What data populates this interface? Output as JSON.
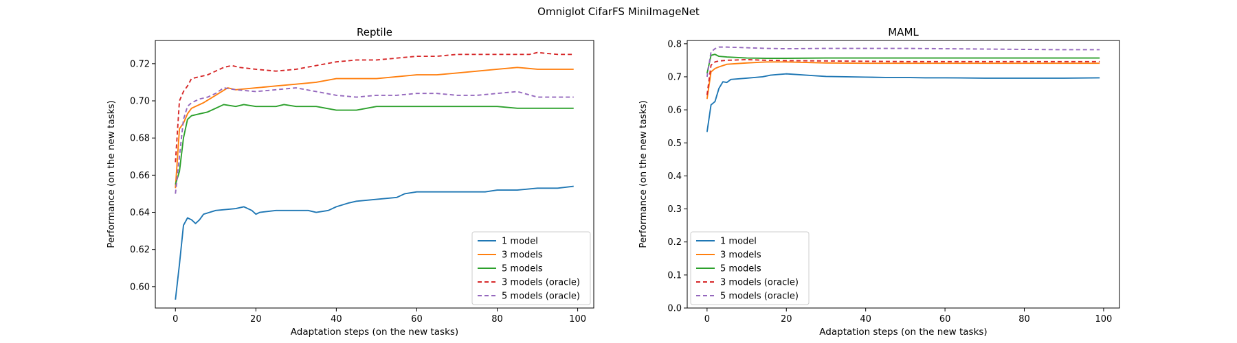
{
  "figure": {
    "suptitle": "Omniglot CifarFS MiniImageNet"
  },
  "legend_order": [
    "1 model",
    "3 models",
    "5 models",
    "3 models (oracle)",
    "5 models (oracle)"
  ],
  "series_style": {
    "1 model": {
      "color": "#1f77b4",
      "dash": ""
    },
    "3 models": {
      "color": "#ff7f0e",
      "dash": ""
    },
    "5 models": {
      "color": "#2ca02c",
      "dash": ""
    },
    "3 models (oracle)": {
      "color": "#d62728",
      "dash": "6 4"
    },
    "5 models (oracle)": {
      "color": "#9467bd",
      "dash": "6 4"
    }
  },
  "chart_data": [
    {
      "type": "line",
      "title": "Reptile",
      "xlabel": "Adaptation steps (on the new tasks)",
      "ylabel": "Performance (on the new tasks)",
      "xlim": [
        -5,
        104
      ],
      "ylim": [
        0.5885,
        0.7325
      ],
      "xticks": [
        0,
        20,
        40,
        60,
        80,
        100
      ],
      "yticks": [
        0.6,
        0.62,
        0.64,
        0.66,
        0.68,
        0.7,
        0.72
      ],
      "ytick_labels": [
        "0.60",
        "0.62",
        "0.64",
        "0.66",
        "0.68",
        "0.70",
        "0.72"
      ],
      "grid": false,
      "legend": "lower-right",
      "series": [
        {
          "name": "1 model",
          "points": [
            [
              0,
              0.593
            ],
            [
              1,
              0.612
            ],
            [
              2,
              0.633
            ],
            [
              3,
              0.637
            ],
            [
              4,
              0.636
            ],
            [
              5,
              0.634
            ],
            [
              6,
              0.636
            ],
            [
              7,
              0.639
            ],
            [
              10,
              0.641
            ],
            [
              15,
              0.642
            ],
            [
              17,
              0.643
            ],
            [
              19,
              0.641
            ],
            [
              20,
              0.639
            ],
            [
              21,
              0.64
            ],
            [
              25,
              0.641
            ],
            [
              30,
              0.641
            ],
            [
              33,
              0.641
            ],
            [
              35,
              0.64
            ],
            [
              38,
              0.641
            ],
            [
              40,
              0.643
            ],
            [
              43,
              0.645
            ],
            [
              45,
              0.646
            ],
            [
              50,
              0.647
            ],
            [
              55,
              0.648
            ],
            [
              57,
              0.65
            ],
            [
              60,
              0.651
            ],
            [
              65,
              0.651
            ],
            [
              70,
              0.651
            ],
            [
              75,
              0.651
            ],
            [
              77,
              0.651
            ],
            [
              80,
              0.652
            ],
            [
              85,
              0.652
            ],
            [
              90,
              0.653
            ],
            [
              95,
              0.653
            ],
            [
              99,
              0.654
            ]
          ]
        },
        {
          "name": "3 models",
          "points": [
            [
              0,
              0.653
            ],
            [
              1,
              0.685
            ],
            [
              2,
              0.688
            ],
            [
              3,
              0.693
            ],
            [
              4,
              0.696
            ],
            [
              5,
              0.697
            ],
            [
              7,
              0.699
            ],
            [
              10,
              0.703
            ],
            [
              13,
              0.707
            ],
            [
              15,
              0.706
            ],
            [
              20,
              0.707
            ],
            [
              25,
              0.708
            ],
            [
              30,
              0.709
            ],
            [
              35,
              0.71
            ],
            [
              40,
              0.712
            ],
            [
              45,
              0.712
            ],
            [
              50,
              0.712
            ],
            [
              55,
              0.713
            ],
            [
              60,
              0.714
            ],
            [
              65,
              0.714
            ],
            [
              70,
              0.715
            ],
            [
              75,
              0.716
            ],
            [
              80,
              0.717
            ],
            [
              85,
              0.718
            ],
            [
              90,
              0.717
            ],
            [
              95,
              0.717
            ],
            [
              99,
              0.717
            ]
          ]
        },
        {
          "name": "5 models",
          "points": [
            [
              0,
              0.655
            ],
            [
              1,
              0.662
            ],
            [
              2,
              0.68
            ],
            [
              3,
              0.69
            ],
            [
              4,
              0.692
            ],
            [
              6,
              0.693
            ],
            [
              8,
              0.694
            ],
            [
              10,
              0.696
            ],
            [
              12,
              0.698
            ],
            [
              15,
              0.697
            ],
            [
              17,
              0.698
            ],
            [
              20,
              0.697
            ],
            [
              25,
              0.697
            ],
            [
              27,
              0.698
            ],
            [
              30,
              0.697
            ],
            [
              35,
              0.697
            ],
            [
              40,
              0.695
            ],
            [
              45,
              0.695
            ],
            [
              50,
              0.697
            ],
            [
              55,
              0.697
            ],
            [
              60,
              0.697
            ],
            [
              65,
              0.697
            ],
            [
              70,
              0.697
            ],
            [
              75,
              0.697
            ],
            [
              80,
              0.697
            ],
            [
              85,
              0.696
            ],
            [
              90,
              0.696
            ],
            [
              95,
              0.696
            ],
            [
              99,
              0.696
            ]
          ]
        },
        {
          "name": "3 models (oracle)",
          "points": [
            [
              0,
              0.667
            ],
            [
              1,
              0.7
            ],
            [
              2,
              0.705
            ],
            [
              3,
              0.708
            ],
            [
              4,
              0.712
            ],
            [
              6,
              0.713
            ],
            [
              8,
              0.714
            ],
            [
              10,
              0.716
            ],
            [
              12,
              0.718
            ],
            [
              14,
              0.719
            ],
            [
              16,
              0.718
            ],
            [
              20,
              0.717
            ],
            [
              25,
              0.716
            ],
            [
              30,
              0.717
            ],
            [
              35,
              0.719
            ],
            [
              40,
              0.721
            ],
            [
              45,
              0.722
            ],
            [
              50,
              0.722
            ],
            [
              55,
              0.723
            ],
            [
              60,
              0.724
            ],
            [
              65,
              0.724
            ],
            [
              70,
              0.725
            ],
            [
              75,
              0.725
            ],
            [
              80,
              0.725
            ],
            [
              85,
              0.725
            ],
            [
              88,
              0.725
            ],
            [
              90,
              0.726
            ],
            [
              95,
              0.725
            ],
            [
              99,
              0.725
            ]
          ]
        },
        {
          "name": "5 models (oracle)",
          "points": [
            [
              0,
              0.65
            ],
            [
              1,
              0.67
            ],
            [
              2,
              0.69
            ],
            [
              3,
              0.697
            ],
            [
              4,
              0.699
            ],
            [
              6,
              0.701
            ],
            [
              8,
              0.702
            ],
            [
              10,
              0.704
            ],
            [
              12,
              0.707
            ],
            [
              15,
              0.706
            ],
            [
              20,
              0.705
            ],
            [
              25,
              0.706
            ],
            [
              30,
              0.707
            ],
            [
              35,
              0.705
            ],
            [
              40,
              0.703
            ],
            [
              45,
              0.702
            ],
            [
              50,
              0.703
            ],
            [
              55,
              0.703
            ],
            [
              60,
              0.704
            ],
            [
              65,
              0.704
            ],
            [
              70,
              0.703
            ],
            [
              75,
              0.703
            ],
            [
              80,
              0.704
            ],
            [
              85,
              0.705
            ],
            [
              90,
              0.702
            ],
            [
              95,
              0.702
            ],
            [
              99,
              0.702
            ]
          ]
        }
      ]
    },
    {
      "type": "line",
      "title": "MAML",
      "xlabel": "Adaptation steps (on the new tasks)",
      "ylabel": "Performance (on the new tasks)",
      "xlim": [
        -5,
        104
      ],
      "ylim": [
        0.0,
        0.81
      ],
      "xticks": [
        0,
        20,
        40,
        60,
        80,
        100
      ],
      "yticks": [
        0.0,
        0.1,
        0.2,
        0.3,
        0.4,
        0.5,
        0.6,
        0.7,
        0.8
      ],
      "ytick_labels": [
        "0.0",
        "0.1",
        "0.2",
        "0.3",
        "0.4",
        "0.5",
        "0.6",
        "0.7",
        "0.8"
      ],
      "grid": false,
      "legend": "lower-left",
      "series": [
        {
          "name": "1 model",
          "points": [
            [
              0,
              0.533
            ],
            [
              1,
              0.615
            ],
            [
              2,
              0.625
            ],
            [
              3,
              0.665
            ],
            [
              4,
              0.685
            ],
            [
              5,
              0.683
            ],
            [
              6,
              0.692
            ],
            [
              10,
              0.696
            ],
            [
              12,
              0.698
            ],
            [
              14,
              0.7
            ],
            [
              16,
              0.705
            ],
            [
              18,
              0.707
            ],
            [
              20,
              0.709
            ],
            [
              25,
              0.705
            ],
            [
              30,
              0.701
            ],
            [
              35,
              0.7
            ],
            [
              40,
              0.699
            ],
            [
              45,
              0.698
            ],
            [
              50,
              0.698
            ],
            [
              55,
              0.697
            ],
            [
              60,
              0.697
            ],
            [
              70,
              0.696
            ],
            [
              80,
              0.696
            ],
            [
              90,
              0.696
            ],
            [
              99,
              0.697
            ]
          ]
        },
        {
          "name": "3 models",
          "points": [
            [
              0,
              0.633
            ],
            [
              1,
              0.715
            ],
            [
              2,
              0.725
            ],
            [
              3,
              0.73
            ],
            [
              5,
              0.738
            ],
            [
              10,
              0.742
            ],
            [
              15,
              0.745
            ],
            [
              20,
              0.745
            ],
            [
              30,
              0.742
            ],
            [
              40,
              0.741
            ],
            [
              50,
              0.741
            ],
            [
              60,
              0.741
            ],
            [
              70,
              0.741
            ],
            [
              80,
              0.741
            ],
            [
              90,
              0.741
            ],
            [
              99,
              0.741
            ]
          ]
        },
        {
          "name": "5 models",
          "points": [
            [
              0,
              0.71
            ],
            [
              1,
              0.765
            ],
            [
              2,
              0.768
            ],
            [
              3,
              0.762
            ],
            [
              5,
              0.76
            ],
            [
              10,
              0.757
            ],
            [
              15,
              0.756
            ],
            [
              20,
              0.756
            ],
            [
              30,
              0.757
            ],
            [
              40,
              0.757
            ],
            [
              50,
              0.757
            ],
            [
              60,
              0.757
            ],
            [
              70,
              0.757
            ],
            [
              80,
              0.757
            ],
            [
              90,
              0.757
            ],
            [
              99,
              0.757
            ]
          ]
        },
        {
          "name": "3 models (oracle)",
          "points": [
            [
              0,
              0.645
            ],
            [
              1,
              0.735
            ],
            [
              2,
              0.745
            ],
            [
              3,
              0.748
            ],
            [
              5,
              0.75
            ],
            [
              10,
              0.752
            ],
            [
              15,
              0.75
            ],
            [
              20,
              0.749
            ],
            [
              30,
              0.748
            ],
            [
              40,
              0.747
            ],
            [
              50,
              0.746
            ],
            [
              60,
              0.746
            ],
            [
              70,
              0.746
            ],
            [
              80,
              0.746
            ],
            [
              90,
              0.746
            ],
            [
              99,
              0.746
            ]
          ]
        },
        {
          "name": "5 models (oracle)",
          "points": [
            [
              0,
              0.7
            ],
            [
              1,
              0.775
            ],
            [
              2,
              0.785
            ],
            [
              3,
              0.79
            ],
            [
              5,
              0.79
            ],
            [
              10,
              0.788
            ],
            [
              15,
              0.786
            ],
            [
              20,
              0.785
            ],
            [
              30,
              0.786
            ],
            [
              40,
              0.786
            ],
            [
              50,
              0.786
            ],
            [
              60,
              0.785
            ],
            [
              70,
              0.784
            ],
            [
              80,
              0.783
            ],
            [
              90,
              0.782
            ],
            [
              99,
              0.782
            ]
          ]
        }
      ]
    }
  ]
}
